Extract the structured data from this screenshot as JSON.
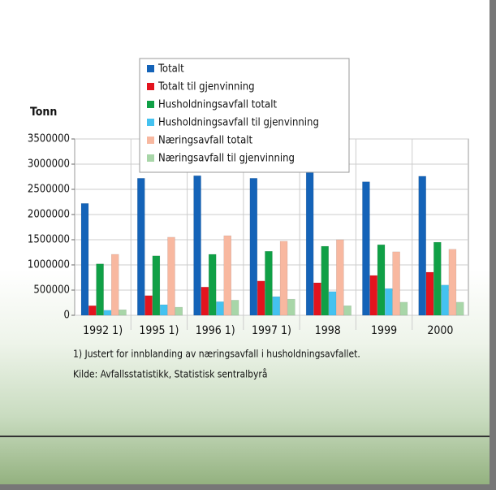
{
  "chart_data": {
    "type": "bar",
    "y_label": "Tonn",
    "categories": [
      "1992 1)",
      "1995 1)",
      "1996 1)",
      "1997 1)",
      "1998",
      "1999",
      "2000"
    ],
    "series": [
      {
        "name": "Totalt",
        "color": "#1463b8",
        "values": [
          2220000,
          2720000,
          2770000,
          2720000,
          2900000,
          2650000,
          2760000
        ]
      },
      {
        "name": "Totalt til gjenvinning",
        "color": "#e3141e",
        "values": [
          190000,
          390000,
          560000,
          680000,
          645000,
          790000,
          855000
        ]
      },
      {
        "name": "Husholdningsavfall totalt",
        "color": "#10a046",
        "values": [
          1020000,
          1180000,
          1210000,
          1270000,
          1370000,
          1400000,
          1450000
        ]
      },
      {
        "name": "Husholdningsavfall til gjenvinning",
        "color": "#44c2f0",
        "values": [
          100000,
          210000,
          270000,
          370000,
          470000,
          530000,
          600000
        ]
      },
      {
        "name": "Næringsavfall totalt",
        "color": "#f8b8a0",
        "values": [
          1210000,
          1550000,
          1580000,
          1470000,
          1500000,
          1260000,
          1310000
        ]
      },
      {
        "name": "Næringsavfall til gjenvinning",
        "color": "#a8d6a8",
        "values": [
          110000,
          160000,
          300000,
          320000,
          190000,
          260000,
          260000
        ]
      }
    ],
    "ylim": [
      0,
      3500000
    ],
    "yticks": [
      0,
      500000,
      1000000,
      1500000,
      2000000,
      2500000,
      3000000,
      3500000
    ],
    "grid": true,
    "notes": [
      "1) Justert for innblanding av næringsavfall i husholdningsavfallet.",
      "Kilde: Avfallsstatistikk, Statistisk sentralbyrå"
    ]
  }
}
